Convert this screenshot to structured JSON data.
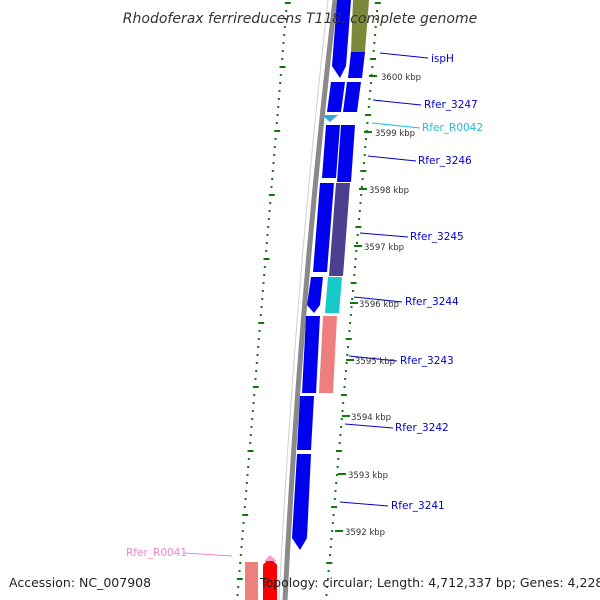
{
  "title": "Rhodoferax ferrireducens T118, complete genome",
  "footer": {
    "accession": "Accession: NC_007908",
    "summary": "Topology: circular; Length: 4,712,337 bp; Genes: 4,228"
  },
  "scale_ticks": [
    {
      "label": "3600 kbp",
      "position_kbp": 3600
    },
    {
      "label": "3599 kbp",
      "position_kbp": 3599
    },
    {
      "label": "3598 kbp",
      "position_kbp": 3598
    },
    {
      "label": "3597 kbp",
      "position_kbp": 3597
    },
    {
      "label": "3596 kbp",
      "position_kbp": 3596
    },
    {
      "label": "3595 kbp",
      "position_kbp": 3595
    },
    {
      "label": "3594 kbp",
      "position_kbp": 3594
    },
    {
      "label": "3593 kbp",
      "position_kbp": 3593
    },
    {
      "label": "3592 kbp",
      "position_kbp": 3592
    }
  ],
  "genes": [
    {
      "name": "ispH",
      "color": "#0000cc"
    },
    {
      "name": "Rfer_3247",
      "color": "#0000cc"
    },
    {
      "name": "Rfer_R0042",
      "color": "#22bbdd"
    },
    {
      "name": "Rfer_3246",
      "color": "#0000cc"
    },
    {
      "name": "Rfer_3245",
      "color": "#0000cc"
    },
    {
      "name": "Rfer_3244",
      "color": "#0000cc"
    },
    {
      "name": "Rfer_3243",
      "color": "#0000cc"
    },
    {
      "name": "Rfer_3242",
      "color": "#0000cc"
    },
    {
      "name": "Rfer_3241",
      "color": "#0000cc"
    },
    {
      "name": "Rfer_R0041",
      "color": "#ee88cc"
    }
  ],
  "colors": {
    "cds": "#0000ee",
    "backbone": "#888888",
    "gc_skew": "#117711",
    "cog_purple": "#4b3f8f",
    "cog_cyan": "#17c9c9",
    "cog_salmon": "#ee7f7f",
    "cog_olive": "#7a8a3a",
    "trna": "#ff0000"
  }
}
